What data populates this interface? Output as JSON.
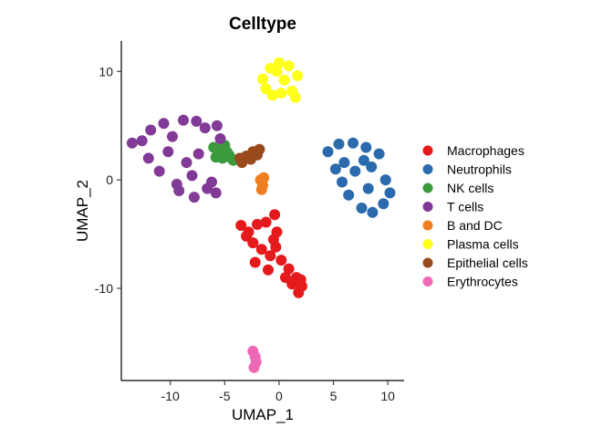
{
  "chart_data": {
    "type": "scatter",
    "title": "Celltype",
    "xlabel": "UMAP_1",
    "ylabel": "UMAP_2",
    "xlim": [
      -14.5,
      11.5
    ],
    "ylim": [
      -18.5,
      12.8
    ],
    "xticks": [
      -10,
      -5,
      0,
      5,
      10
    ],
    "yticks": [
      10,
      0,
      -10
    ],
    "grid": false,
    "legend_position": "right",
    "series": [
      {
        "name": "Macrophages",
        "color": "#E41A1C",
        "x": [
          -3.5,
          -2.8,
          -2.0,
          -1.2,
          -0.4,
          -0.2,
          -0.3,
          -1.6,
          -2.4,
          -0.8,
          0.2,
          0.9,
          1.6,
          2.1,
          1.8,
          0.6,
          -1.0,
          -2.2,
          -3.0,
          -0.5,
          1.2,
          2.0
        ],
        "y": [
          -4.2,
          -4.8,
          -4.1,
          -3.9,
          -3.2,
          -4.8,
          -6.2,
          -6.4,
          -5.8,
          -7.0,
          -7.4,
          -8.2,
          -9.0,
          -9.8,
          -10.4,
          -9.0,
          -8.3,
          -7.6,
          -5.2,
          -5.5,
          -9.6,
          -9.2
        ]
      },
      {
        "name": "Neutrophils",
        "color": "#2B6AAC",
        "x": [
          4.5,
          5.5,
          6.8,
          8.0,
          9.2,
          8.5,
          9.8,
          10.2,
          9.6,
          8.6,
          7.6,
          6.4,
          5.8,
          7.0,
          8.2,
          6.0,
          7.8,
          5.2
        ],
        "y": [
          2.6,
          3.3,
          3.4,
          3.0,
          2.4,
          1.2,
          0.0,
          -1.2,
          -2.2,
          -3.0,
          -2.6,
          -1.4,
          -0.2,
          0.8,
          -0.8,
          1.6,
          1.8,
          1.0
        ]
      },
      {
        "name": "NK cells",
        "color": "#3B9A3C",
        "x": [
          -6.0,
          -5.6,
          -5.2,
          -4.8,
          -4.4,
          -5.8,
          -5.0,
          -4.2,
          -5.4,
          -4.6
        ],
        "y": [
          3.0,
          2.4,
          2.0,
          2.6,
          2.0,
          2.1,
          3.2,
          1.8,
          2.8,
          2.3
        ]
      },
      {
        "name": "T cells",
        "color": "#823A97",
        "x": [
          -13.5,
          -12.6,
          -11.8,
          -10.6,
          -9.8,
          -8.8,
          -7.6,
          -6.8,
          -5.7,
          -5.4,
          -7.4,
          -8.5,
          -9.2,
          -11.0,
          -12.0,
          -6.2,
          -5.8,
          -7.8,
          -9.4,
          -8.0,
          -10.2,
          -6.6
        ],
        "y": [
          3.4,
          3.6,
          4.6,
          5.2,
          4.0,
          5.5,
          5.4,
          4.8,
          5.0,
          3.8,
          2.4,
          1.6,
          -1.0,
          0.8,
          2.0,
          -0.2,
          -1.2,
          -1.6,
          -0.4,
          0.4,
          2.6,
          -0.8
        ]
      },
      {
        "name": "B and DC",
        "color": "#F07E1E",
        "x": [
          -1.7,
          -1.5,
          -1.6,
          -1.4
        ],
        "y": [
          0.0,
          -0.5,
          -0.9,
          0.2
        ]
      },
      {
        "name": "Plasma cells",
        "color": "#FFFF1A",
        "x": [
          -1.5,
          -0.8,
          0.0,
          0.9,
          1.7,
          1.2,
          0.2,
          -0.6,
          -1.2,
          0.5,
          1.5,
          -0.2
        ],
        "y": [
          9.3,
          10.3,
          10.8,
          10.5,
          9.6,
          8.2,
          8.0,
          7.8,
          8.4,
          9.2,
          7.6,
          10.0
        ]
      },
      {
        "name": "Epithelial cells",
        "color": "#994A1C",
        "x": [
          -3.6,
          -3.0,
          -2.4,
          -1.8,
          -3.4,
          -2.6,
          -2.0
        ],
        "y": [
          2.0,
          2.2,
          2.6,
          2.8,
          1.6,
          1.9,
          2.3
        ]
      },
      {
        "name": "Erythrocytes",
        "color": "#EE68B5",
        "x": [
          -2.4,
          -2.2,
          -2.1,
          -2.3
        ],
        "y": [
          -15.8,
          -16.3,
          -16.8,
          -17.3
        ]
      }
    ]
  }
}
